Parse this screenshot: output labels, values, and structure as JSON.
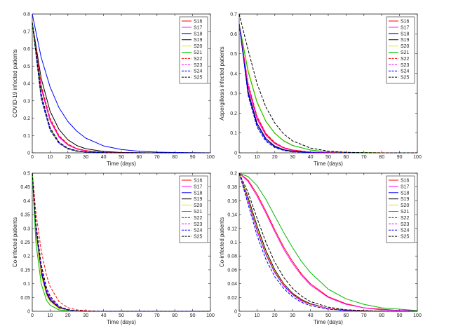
{
  "chart_data": [
    {
      "type": "line",
      "panel": "top-left",
      "xlabel": "Time (days)",
      "ylabel": "COVID-19 infected patients",
      "xlim": [
        0,
        100
      ],
      "ylim": [
        0,
        0.8
      ],
      "xticks": [
        "0",
        "10",
        "20",
        "30",
        "40",
        "50",
        "60",
        "70",
        "80",
        "90",
        "100"
      ],
      "yticks": [
        "0",
        "0.1",
        "0.2",
        "0.3",
        "0.4",
        "0.5",
        "0.6",
        "0.7",
        "0.8"
      ],
      "legend_position": "top-right",
      "x": [
        0,
        5,
        10,
        15,
        20,
        25,
        30,
        40,
        50,
        60,
        70,
        80,
        90,
        100
      ],
      "series": [
        {
          "name": "S16",
          "color": "#ff0000",
          "dash": false,
          "values": [
            0.75,
            0.38,
            0.19,
            0.095,
            0.048,
            0.024,
            0.012,
            0.003,
            0.001,
            0,
            0,
            0,
            0,
            0
          ]
        },
        {
          "name": "S17",
          "color": "#ff00ff",
          "dash": false,
          "values": [
            0.75,
            0.37,
            0.185,
            0.09,
            0.045,
            0.022,
            0.011,
            0.003,
            0.001,
            0,
            0,
            0,
            0,
            0
          ]
        },
        {
          "name": "S18",
          "color": "#0000ff",
          "dash": false,
          "values": [
            0.8,
            0.55,
            0.38,
            0.26,
            0.18,
            0.125,
            0.085,
            0.04,
            0.019,
            0.009,
            0.004,
            0.002,
            0.001,
            0
          ]
        },
        {
          "name": "S19",
          "color": "#000000",
          "dash": false,
          "values": [
            0.75,
            0.43,
            0.24,
            0.135,
            0.075,
            0.042,
            0.024,
            0.008,
            0.002,
            0.001,
            0,
            0,
            0,
            0
          ]
        },
        {
          "name": "S20",
          "color": "#e6e600",
          "dash": false,
          "values": [
            0.75,
            0.33,
            0.14,
            0.06,
            0.026,
            0.011,
            0.005,
            0.001,
            0,
            0,
            0,
            0,
            0,
            0
          ]
        },
        {
          "name": "S21",
          "color": "#00bb00",
          "dash": false,
          "values": [
            0.75,
            0.32,
            0.135,
            0.057,
            0.024,
            0.01,
            0.004,
            0.001,
            0,
            0,
            0,
            0,
            0,
            0
          ]
        },
        {
          "name": "S22",
          "color": "#ff0000",
          "dash": true,
          "values": [
            0.75,
            0.39,
            0.2,
            0.1,
            0.05,
            0.025,
            0.013,
            0.003,
            0.001,
            0,
            0,
            0,
            0,
            0
          ]
        },
        {
          "name": "S23",
          "color": "#ff00ff",
          "dash": true,
          "values": [
            0.75,
            0.33,
            0.14,
            0.06,
            0.026,
            0.011,
            0.005,
            0.001,
            0,
            0,
            0,
            0,
            0,
            0
          ]
        },
        {
          "name": "S24",
          "color": "#0000ff",
          "dash": true,
          "values": [
            0.75,
            0.31,
            0.13,
            0.054,
            0.022,
            0.009,
            0.004,
            0.001,
            0,
            0,
            0,
            0,
            0,
            0
          ]
        },
        {
          "name": "S25",
          "color": "#000000",
          "dash": true,
          "values": [
            0.75,
            0.34,
            0.145,
            0.062,
            0.027,
            0.012,
            0.005,
            0.001,
            0,
            0,
            0,
            0,
            0,
            0
          ]
        }
      ]
    },
    {
      "type": "line",
      "panel": "top-right",
      "xlabel": "Time (days)",
      "ylabel": "Aspergillosis infected patients",
      "xlim": [
        0,
        100
      ],
      "ylim": [
        0,
        0.7
      ],
      "xticks": [
        "0",
        "10",
        "20",
        "30",
        "40",
        "50",
        "60",
        "70",
        "80",
        "90",
        "100"
      ],
      "yticks": [
        "0",
        "0.1",
        "0.2",
        "0.3",
        "0.4",
        "0.5",
        "0.6",
        "0.7"
      ],
      "legend_position": "top-right",
      "x": [
        0,
        5,
        10,
        15,
        20,
        25,
        30,
        40,
        50,
        60,
        70,
        80,
        90,
        100
      ],
      "series": [
        {
          "name": "S16",
          "color": "#ff0000",
          "dash": false,
          "values": [
            0.65,
            0.34,
            0.18,
            0.095,
            0.05,
            0.026,
            0.014,
            0.004,
            0.001,
            0,
            0,
            0,
            0,
            0
          ]
        },
        {
          "name": "S17",
          "color": "#ff00ff",
          "dash": false,
          "values": [
            0.65,
            0.33,
            0.17,
            0.088,
            0.046,
            0.024,
            0.012,
            0.003,
            0.001,
            0,
            0,
            0,
            0,
            0
          ]
        },
        {
          "name": "S18",
          "color": "#0000ff",
          "dash": false,
          "values": [
            0.65,
            0.3,
            0.14,
            0.065,
            0.03,
            0.014,
            0.007,
            0.001,
            0,
            0,
            0,
            0,
            0,
            0
          ]
        },
        {
          "name": "S19",
          "color": "#000000",
          "dash": false,
          "values": [
            0.65,
            0.31,
            0.15,
            0.072,
            0.034,
            0.016,
            0.008,
            0.002,
            0,
            0,
            0,
            0,
            0,
            0
          ]
        },
        {
          "name": "S20",
          "color": "#e6e600",
          "dash": false,
          "values": [
            0.65,
            0.42,
            0.26,
            0.16,
            0.1,
            0.062,
            0.038,
            0.014,
            0.005,
            0.002,
            0.001,
            0,
            0,
            0
          ]
        },
        {
          "name": "S21",
          "color": "#00bb00",
          "dash": false,
          "values": [
            0.65,
            0.41,
            0.255,
            0.158,
            0.098,
            0.06,
            0.037,
            0.014,
            0.005,
            0.002,
            0.001,
            0,
            0,
            0
          ]
        },
        {
          "name": "S22",
          "color": "#ff0000",
          "dash": true,
          "values": [
            0.65,
            0.35,
            0.185,
            0.098,
            0.052,
            0.027,
            0.014,
            0.004,
            0.001,
            0,
            0,
            0,
            0,
            0
          ]
        },
        {
          "name": "S23",
          "color": "#ff00ff",
          "dash": true,
          "values": [
            0.65,
            0.34,
            0.175,
            0.09,
            0.047,
            0.024,
            0.012,
            0.003,
            0.001,
            0,
            0,
            0,
            0,
            0
          ]
        },
        {
          "name": "S24",
          "color": "#0000ff",
          "dash": true,
          "values": [
            0.65,
            0.29,
            0.13,
            0.058,
            0.026,
            0.012,
            0.005,
            0.001,
            0,
            0,
            0,
            0,
            0,
            0
          ]
        },
        {
          "name": "S25",
          "color": "#000000",
          "dash": true,
          "values": [
            0.7,
            0.52,
            0.35,
            0.23,
            0.15,
            0.095,
            0.06,
            0.024,
            0.009,
            0.003,
            0.001,
            0,
            0,
            0
          ]
        }
      ]
    },
    {
      "type": "line",
      "panel": "bottom-left",
      "xlabel": "Time (days)",
      "ylabel": "Co-infected patients",
      "xlim": [
        0,
        100
      ],
      "ylim": [
        0,
        0.5
      ],
      "xticks": [
        "0",
        "10",
        "20",
        "30",
        "40",
        "50",
        "60",
        "70",
        "80",
        "90",
        "100"
      ],
      "yticks": [
        "0",
        "0.05",
        "0.1",
        "0.15",
        "0.2",
        "0.25",
        "0.3",
        "0.35",
        "0.4",
        "0.45",
        "0.5"
      ],
      "legend_position": "top-right",
      "x": [
        0,
        2,
        5,
        8,
        10,
        15,
        20,
        25,
        30,
        40,
        50,
        60,
        70,
        80,
        90,
        100
      ],
      "series": [
        {
          "name": "S16",
          "color": "#ff0000",
          "dash": false,
          "values": [
            0.5,
            0.3,
            0.15,
            0.07,
            0.045,
            0.014,
            0.004,
            0.001,
            0,
            0,
            0,
            0,
            0,
            0,
            0,
            0
          ]
        },
        {
          "name": "S17",
          "color": "#ff00ff",
          "dash": false,
          "values": [
            0.5,
            0.3,
            0.15,
            0.07,
            0.045,
            0.014,
            0.004,
            0.001,
            0,
            0,
            0,
            0,
            0,
            0,
            0,
            0
          ]
        },
        {
          "name": "S18",
          "color": "#0000ff",
          "dash": false,
          "values": [
            0.5,
            0.29,
            0.14,
            0.065,
            0.04,
            0.012,
            0.003,
            0.001,
            0,
            0,
            0,
            0,
            0,
            0,
            0,
            0
          ]
        },
        {
          "name": "S19",
          "color": "#000000",
          "dash": false,
          "values": [
            0.5,
            0.29,
            0.14,
            0.065,
            0.04,
            0.012,
            0.003,
            0.001,
            0,
            0,
            0,
            0,
            0,
            0,
            0,
            0
          ]
        },
        {
          "name": "S20",
          "color": "#e6e600",
          "dash": false,
          "values": [
            0.5,
            0.28,
            0.13,
            0.058,
            0.035,
            0.01,
            0.003,
            0.001,
            0,
            0,
            0,
            0,
            0,
            0,
            0,
            0
          ]
        },
        {
          "name": "S21",
          "color": "#00bb00",
          "dash": false,
          "values": [
            0.5,
            0.25,
            0.1,
            0.04,
            0.022,
            0.005,
            0.001,
            0,
            0,
            0,
            0,
            0,
            0,
            0,
            0,
            0
          ]
        },
        {
          "name": "S22",
          "color": "#ff0000",
          "dash": true,
          "values": [
            0.5,
            0.36,
            0.22,
            0.13,
            0.09,
            0.035,
            0.013,
            0.005,
            0.002,
            0,
            0,
            0,
            0,
            0,
            0,
            0
          ]
        },
        {
          "name": "S23",
          "color": "#ff00ff",
          "dash": true,
          "values": [
            0.5,
            0.31,
            0.16,
            0.078,
            0.05,
            0.016,
            0.005,
            0.001,
            0,
            0,
            0,
            0,
            0,
            0,
            0,
            0
          ]
        },
        {
          "name": "S24",
          "color": "#0000ff",
          "dash": true,
          "values": [
            0.5,
            0.3,
            0.15,
            0.072,
            0.046,
            0.014,
            0.004,
            0.001,
            0,
            0,
            0,
            0,
            0,
            0,
            0,
            0
          ]
        },
        {
          "name": "S25",
          "color": "#000000",
          "dash": true,
          "values": [
            0.5,
            0.32,
            0.17,
            0.085,
            0.055,
            0.018,
            0.006,
            0.002,
            0,
            0,
            0,
            0,
            0,
            0,
            0,
            0
          ]
        }
      ]
    },
    {
      "type": "line",
      "panel": "bottom-right",
      "xlabel": "Time (days)",
      "ylabel": "Co-infected patients",
      "xlim": [
        0,
        100
      ],
      "ylim": [
        0,
        0.2
      ],
      "xticks": [
        "0",
        "10",
        "20",
        "30",
        "40",
        "50",
        "60",
        "70",
        "80",
        "90",
        "100"
      ],
      "yticks": [
        "0",
        "0.02",
        "0.04",
        "0.06",
        "0.08",
        "0.1",
        "0.12",
        "0.14",
        "0.16",
        "0.18",
        "0.2"
      ],
      "legend_position": "top-right",
      "x": [
        0,
        5,
        10,
        15,
        20,
        25,
        30,
        35,
        40,
        50,
        60,
        70,
        80,
        90,
        100
      ],
      "series": [
        {
          "name": "S16",
          "color": "#ff0000",
          "dash": false,
          "values": [
            0.2,
            0.19,
            0.17,
            0.145,
            0.118,
            0.093,
            0.072,
            0.054,
            0.04,
            0.021,
            0.011,
            0.005,
            0.003,
            0.001,
            0.001
          ]
        },
        {
          "name": "S17",
          "color": "#ff00ff",
          "dash": false,
          "values": [
            0.2,
            0.188,
            0.167,
            0.142,
            0.115,
            0.09,
            0.069,
            0.052,
            0.038,
            0.02,
            0.01,
            0.005,
            0.002,
            0.001,
            0.001
          ]
        },
        {
          "name": "S18",
          "color": "#0000ff",
          "dash": false,
          "values": [
            0.2,
            0.16,
            0.117,
            0.082,
            0.056,
            0.037,
            0.024,
            0.015,
            0.01,
            0.004,
            0.001,
            0,
            0,
            0,
            0
          ]
        },
        {
          "name": "S19",
          "color": "#000000",
          "dash": false,
          "values": [
            0.2,
            0.165,
            0.124,
            0.088,
            0.06,
            0.04,
            0.026,
            0.017,
            0.011,
            0.004,
            0.002,
            0.001,
            0,
            0,
            0
          ]
        },
        {
          "name": "S20",
          "color": "#e6e600",
          "dash": false,
          "values": [
            0.2,
            0.162,
            0.12,
            0.085,
            0.058,
            0.039,
            0.025,
            0.016,
            0.01,
            0.004,
            0.002,
            0.001,
            0,
            0,
            0
          ]
        },
        {
          "name": "S21",
          "color": "#00bb00",
          "dash": false,
          "values": [
            0.2,
            0.195,
            0.182,
            0.162,
            0.138,
            0.114,
            0.092,
            0.072,
            0.056,
            0.032,
            0.018,
            0.01,
            0.005,
            0.003,
            0.001
          ]
        },
        {
          "name": "S22",
          "color": "#ff0000",
          "dash": true,
          "values": [
            0.2,
            0.161,
            0.118,
            0.083,
            0.057,
            0.038,
            0.025,
            0.016,
            0.01,
            0.004,
            0.002,
            0.001,
            0,
            0,
            0
          ]
        },
        {
          "name": "S23",
          "color": "#ff00ff",
          "dash": true,
          "values": [
            0.2,
            0.16,
            0.117,
            0.082,
            0.056,
            0.037,
            0.024,
            0.015,
            0.01,
            0.004,
            0.001,
            0,
            0,
            0,
            0
          ]
        },
        {
          "name": "S24",
          "color": "#0000ff",
          "dash": true,
          "values": [
            0.2,
            0.155,
            0.11,
            0.075,
            0.05,
            0.033,
            0.021,
            0.013,
            0.008,
            0.003,
            0.001,
            0,
            0,
            0,
            0
          ]
        },
        {
          "name": "S25",
          "color": "#000000",
          "dash": true,
          "values": [
            0.2,
            0.172,
            0.135,
            0.1,
            0.071,
            0.049,
            0.033,
            0.022,
            0.014,
            0.006,
            0.002,
            0.001,
            0,
            0,
            0
          ]
        }
      ]
    }
  ]
}
